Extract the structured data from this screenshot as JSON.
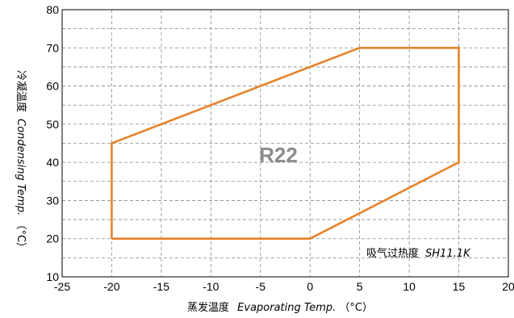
{
  "chart_data": {
    "type": "line",
    "title": "",
    "xlabel": "蒸发温度 Evaporating Temp.（°C）",
    "xlabel_cn": "蒸发温度",
    "xlabel_en": "Evaporating Temp.",
    "xlabel_unit": "（°C）",
    "ylabel": "冷凝温度 Condensing Temp.（°C）",
    "ylabel_cn": "冷凝温度",
    "ylabel_en": "Condensing Temp.",
    "ylabel_unit": "（°C）",
    "xlim": [
      -25,
      20
    ],
    "ylim": [
      10,
      80
    ],
    "xticks": [
      -25,
      -20,
      -15,
      -10,
      -5,
      0,
      5,
      10,
      15,
      20
    ],
    "yticks": [
      10,
      20,
      30,
      40,
      50,
      60,
      70,
      80
    ],
    "grid": "dashed",
    "legend": "none",
    "series": [
      {
        "name": "R22",
        "closed": true,
        "color": "#e8822a",
        "x": [
          -20,
          -20,
          5,
          15,
          15,
          0,
          -20
        ],
        "y": [
          20,
          45,
          70,
          70,
          40,
          20,
          20
        ]
      }
    ],
    "annotation_cn": "吸气过热度",
    "annotation_en": "SH11.1K"
  }
}
